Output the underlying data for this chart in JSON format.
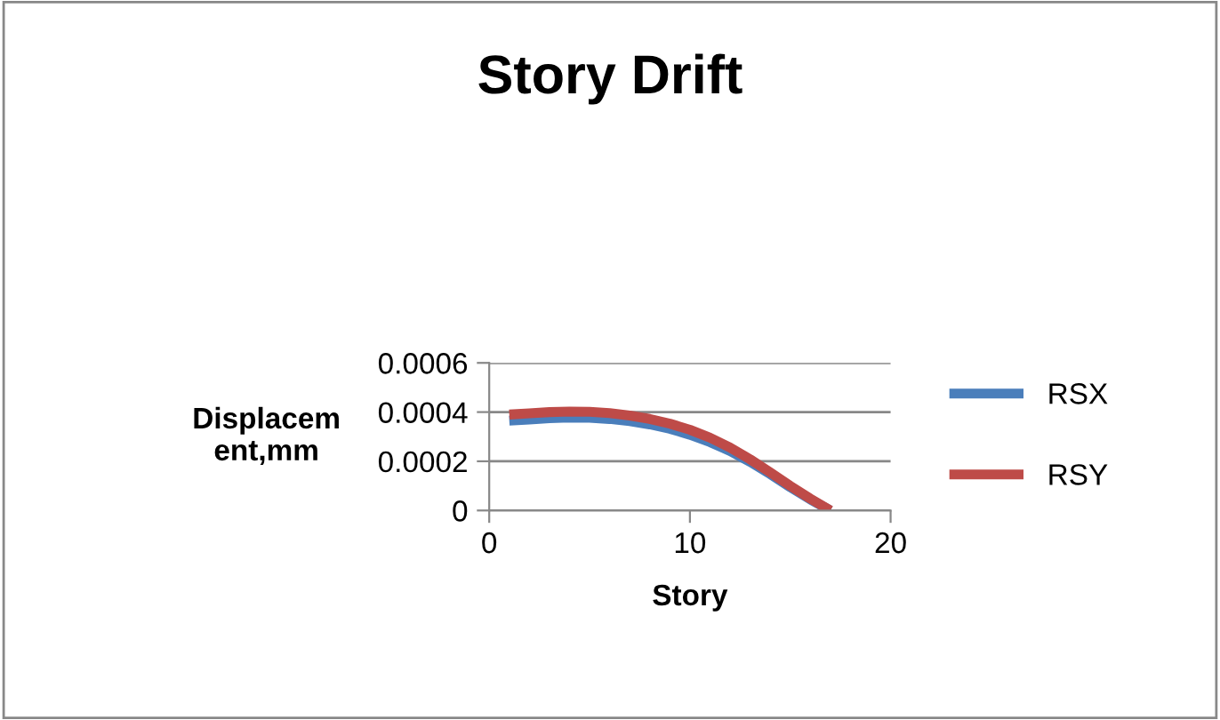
{
  "chart_data": {
    "type": "line",
    "title": "Story Drift",
    "xlabel": "Story",
    "ylabel": "Displacem\nent,mm",
    "x": [
      1,
      2,
      3,
      4,
      5,
      6,
      7,
      8,
      9,
      10,
      11,
      12,
      13,
      14,
      15,
      16,
      17
    ],
    "series": [
      {
        "name": "RSX",
        "color": "#4a7ebb",
        "values": [
          0.000365,
          0.00037,
          0.000375,
          0.000378,
          0.000377,
          0.000372,
          0.000363,
          0.00035,
          0.000332,
          0.000308,
          0.000278,
          0.000242,
          0.000198,
          0.000148,
          9.5e-05,
          4.5e-05,
          0
        ]
      },
      {
        "name": "RSY",
        "color": "#be4b48",
        "values": [
          0.00039,
          0.000395,
          0.0004,
          0.000402,
          0.000401,
          0.000396,
          0.000386,
          0.000372,
          0.000353,
          0.000328,
          0.000296,
          0.000256,
          0.000208,
          0.000155,
          0.0001,
          4.8e-05,
          0
        ]
      }
    ],
    "xlim": [
      0,
      20
    ],
    "xticks": [
      0,
      10,
      20
    ],
    "ylim": [
      0,
      0.0006
    ],
    "yticks": [
      "0",
      {
        "value": 0.0002,
        "label": "0.0002"
      },
      {
        "value": 0.0004,
        "label": "0.0004"
      },
      {
        "value": 0.0006,
        "label": "0.0006"
      }
    ],
    "grid": "y",
    "legend": "right",
    "marker": "none",
    "line_style": "solid"
  }
}
